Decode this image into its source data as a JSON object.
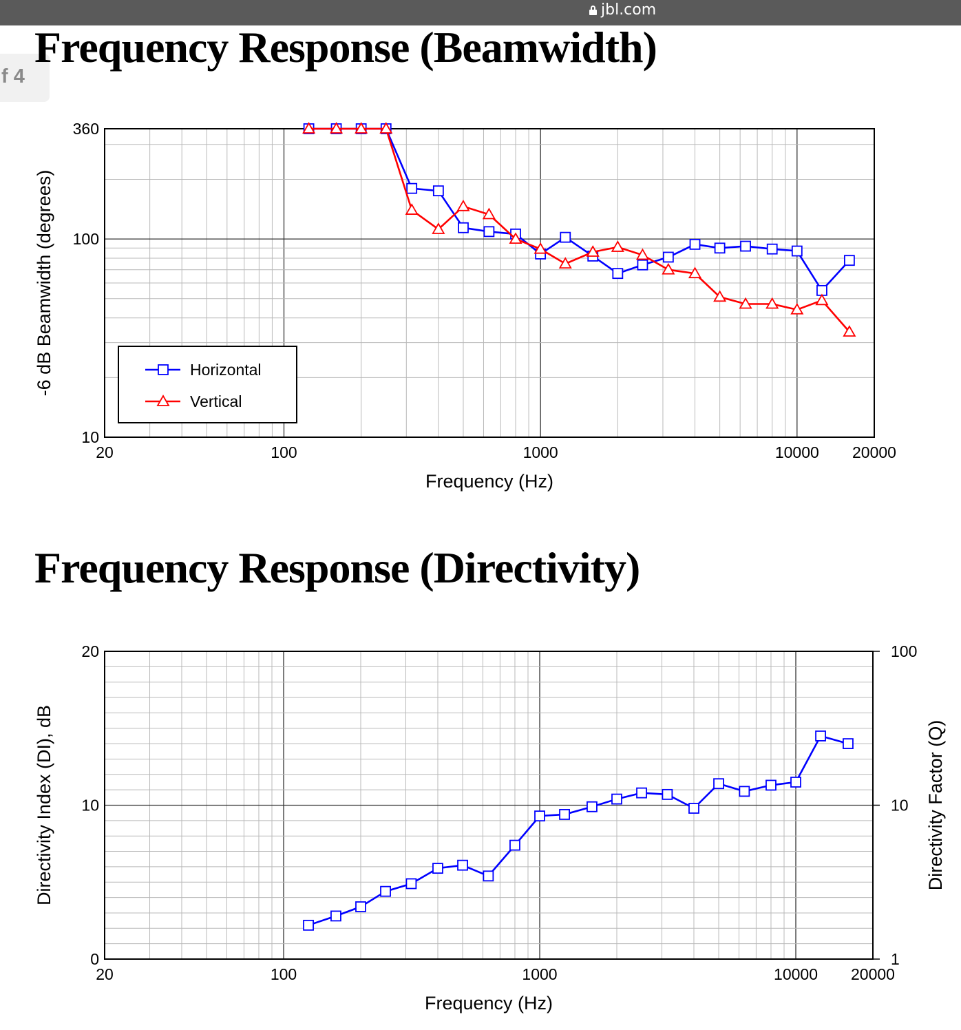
{
  "browser": {
    "url": "jbl.com"
  },
  "page_indicator": "f 4",
  "chart_data": [
    {
      "type": "line",
      "title": "Frequency Response (Beamwidth)",
      "xlabel": "Frequency (Hz)",
      "ylabel": "-6 dB Beamwidth (degrees)",
      "x_scale": "log",
      "y_scale": "log",
      "xlim": [
        20,
        20000
      ],
      "ylim": [
        10,
        360
      ],
      "x_ticks": [
        20,
        100,
        1000,
        10000,
        20000
      ],
      "y_ticks": [
        10,
        100,
        360
      ],
      "grid": true,
      "legend": "lower-left",
      "x": [
        125,
        160,
        200,
        250,
        315,
        400,
        500,
        630,
        800,
        1000,
        1250,
        1600,
        2000,
        2500,
        3150,
        4000,
        5000,
        6300,
        8000,
        10000,
        12500,
        16000
      ],
      "series": [
        {
          "name": "Horizontal",
          "color": "#0000ff",
          "marker": "square",
          "values": [
            360,
            360,
            360,
            360,
            180,
            175,
            114,
            109,
            106,
            84,
            102,
            82,
            67,
            74,
            81,
            94,
            90,
            92,
            89,
            87,
            55,
            78
          ]
        },
        {
          "name": "Vertical",
          "color": "#ff0000",
          "marker": "triangle",
          "values": [
            360,
            360,
            360,
            360,
            140,
            112,
            146,
            133,
            100,
            89,
            75,
            86,
            91,
            83,
            70,
            67,
            51,
            47,
            47,
            44,
            49,
            34
          ]
        }
      ]
    },
    {
      "type": "line",
      "title": "Frequency Response (Directivity)",
      "xlabel": "Frequency (Hz)",
      "ylabel": "Directivity Index (DI), dB",
      "y2label": "Directivity Factor (Q)",
      "x_scale": "log",
      "xlim": [
        20,
        20000
      ],
      "ylim": [
        0,
        20
      ],
      "y2lim": [
        1,
        100
      ],
      "x_ticks": [
        20,
        100,
        1000,
        10000,
        20000
      ],
      "y_ticks": [
        0,
        10,
        20
      ],
      "y2_ticks": [
        1,
        10,
        100
      ],
      "grid": true,
      "x": [
        125,
        160,
        200,
        250,
        315,
        400,
        500,
        630,
        800,
        1000,
        1250,
        1600,
        2000,
        2500,
        3150,
        4000,
        5000,
        6300,
        8000,
        10000,
        12500,
        16000
      ],
      "series": [
        {
          "name": "",
          "color": "#0000ff",
          "marker": "square",
          "values": [
            2.2,
            2.8,
            3.4,
            4.4,
            4.9,
            5.9,
            6.1,
            5.4,
            7.4,
            9.3,
            9.4,
            9.9,
            10.4,
            10.8,
            10.7,
            9.8,
            11.4,
            10.9,
            11.3,
            11.5,
            14.5,
            14.0
          ]
        }
      ]
    }
  ]
}
